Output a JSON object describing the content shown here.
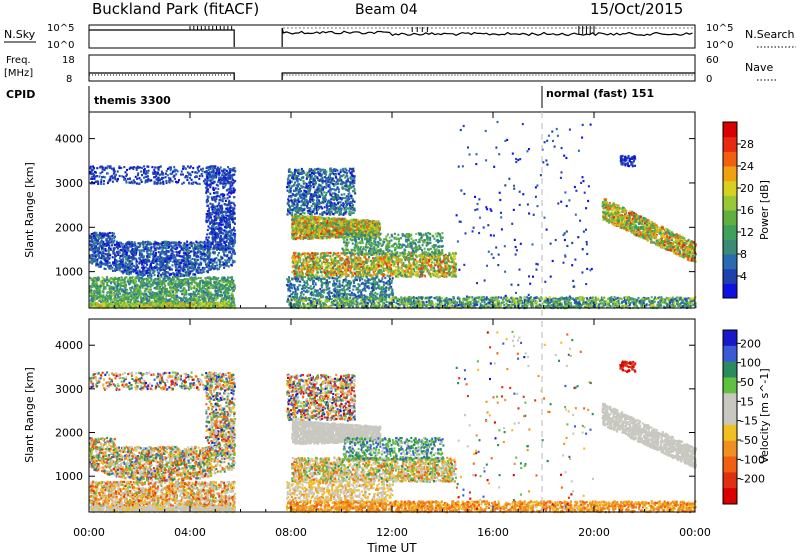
{
  "header": {
    "station": "Buckland Park (fitACF)",
    "beam": "Beam 04",
    "date": "15/Oct/2015"
  },
  "top_panels": {
    "nsky_label": "N.Sky",
    "nsky_tick_top": "10^5",
    "nsky_tick_bottom": "10^0",
    "nsearch_label": "N.Search",
    "nsearch_tick_top": "10^5",
    "nsearch_tick_bottom": "10^0",
    "freq_label_1": "Freq.",
    "freq_label_2": "[MHz]",
    "freq_tick_top": "18",
    "freq_tick_bottom": "8",
    "nave_label": "Nave",
    "nave_tick_top": "60",
    "nave_tick_bottom": "0",
    "cpid_label": "CPID",
    "cpid_program_1": "themis 3300",
    "cpid_program_2": "normal (fast) 151"
  },
  "chart_data": [
    {
      "type": "heatmap",
      "name": "power",
      "ylabel": "Slant Range [km]",
      "yticks": [
        1000,
        2000,
        3000,
        4000
      ],
      "ylim": [
        180,
        4600
      ],
      "xlim": [
        0,
        24
      ],
      "colorbar_label": "Power [dB]",
      "colorbar_ticks": [
        "4",
        "8",
        "12",
        "16",
        "20",
        "24",
        "28"
      ],
      "colors": [
        "#1010e0",
        "#2040b0",
        "#2a6ab0",
        "#3a8a78",
        "#3fa05a",
        "#60b040",
        "#98c838",
        "#d8d020",
        "#f0a010",
        "#f06010",
        "#e82a10",
        "#d80000"
      ]
    },
    {
      "type": "heatmap",
      "name": "velocity",
      "ylabel": "Slant Range [km]",
      "yticks": [
        1000,
        2000,
        3000,
        4000
      ],
      "ylim": [
        180,
        4600
      ],
      "xlim": [
        0,
        24
      ],
      "colorbar_label": "Velocity [m s^-1]",
      "colorbar_ticks": [
        "200",
        "100",
        "50",
        "15",
        "-15",
        "-50",
        "-100",
        "-200"
      ],
      "colors": [
        "#1818c8",
        "#3a5ad8",
        "#2a8a60",
        "#60c040",
        "#c8c8c0",
        "#c8c8c0",
        "#f0c020",
        "#f09020",
        "#f06010",
        "#e03010",
        "#d80000"
      ],
      "xlabel": "Time UT",
      "xticks": [
        "00:00",
        "04:00",
        "08:00",
        "12:00",
        "16:00",
        "20:00",
        "00:00"
      ]
    }
  ],
  "colors": {
    "axis": "#000000",
    "dashed": "#b8b8b8"
  }
}
